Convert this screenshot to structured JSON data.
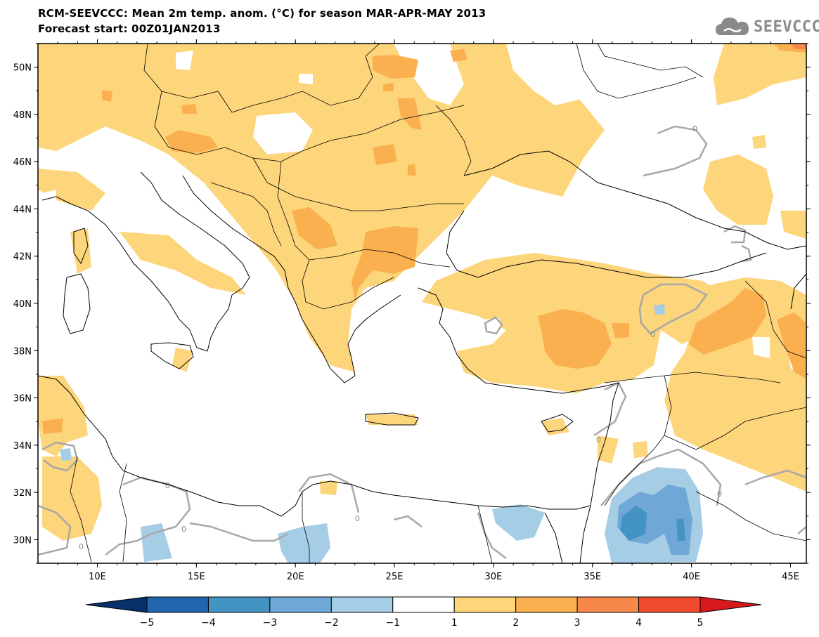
{
  "header": {
    "title_line1": "RCM-SEEVCCC: Mean 2m temp. anom. (°C) for season MAR-APR-MAY 2013",
    "title_line2": "Forecast start: 00Z01JAN2013"
  },
  "logo": {
    "text": "SEEVCCC",
    "icon": "cloud-icon"
  },
  "map": {
    "lon_range": [
      7,
      45.8
    ],
    "lat_range": [
      29,
      51
    ],
    "lat_ticks": [
      30,
      32,
      34,
      36,
      38,
      40,
      42,
      44,
      46,
      48,
      50
    ],
    "lat_labels": [
      "30N",
      "32N",
      "34N",
      "36N",
      "38N",
      "40N",
      "42N",
      "44N",
      "46N",
      "48N",
      "50N"
    ],
    "lon_ticks": [
      10,
      15,
      20,
      25,
      30,
      35,
      40,
      45
    ],
    "lon_labels": [
      "10E",
      "15E",
      "20E",
      "25E",
      "30E",
      "35E",
      "40E",
      "45E"
    ],
    "contour_label": "0"
  },
  "colorbar": {
    "labels": [
      "−5",
      "−4",
      "−3",
      "−2",
      "−1",
      "1",
      "2",
      "3",
      "4",
      "5"
    ],
    "colors": [
      "#08306b",
      "#2166ac",
      "#4393c3",
      "#6fa8d6",
      "#a6cde6",
      "#ffffff",
      "#fdd57a",
      "#fbb04f",
      "#f7884a",
      "#ef4b2c",
      "#d7191c"
    ]
  }
}
